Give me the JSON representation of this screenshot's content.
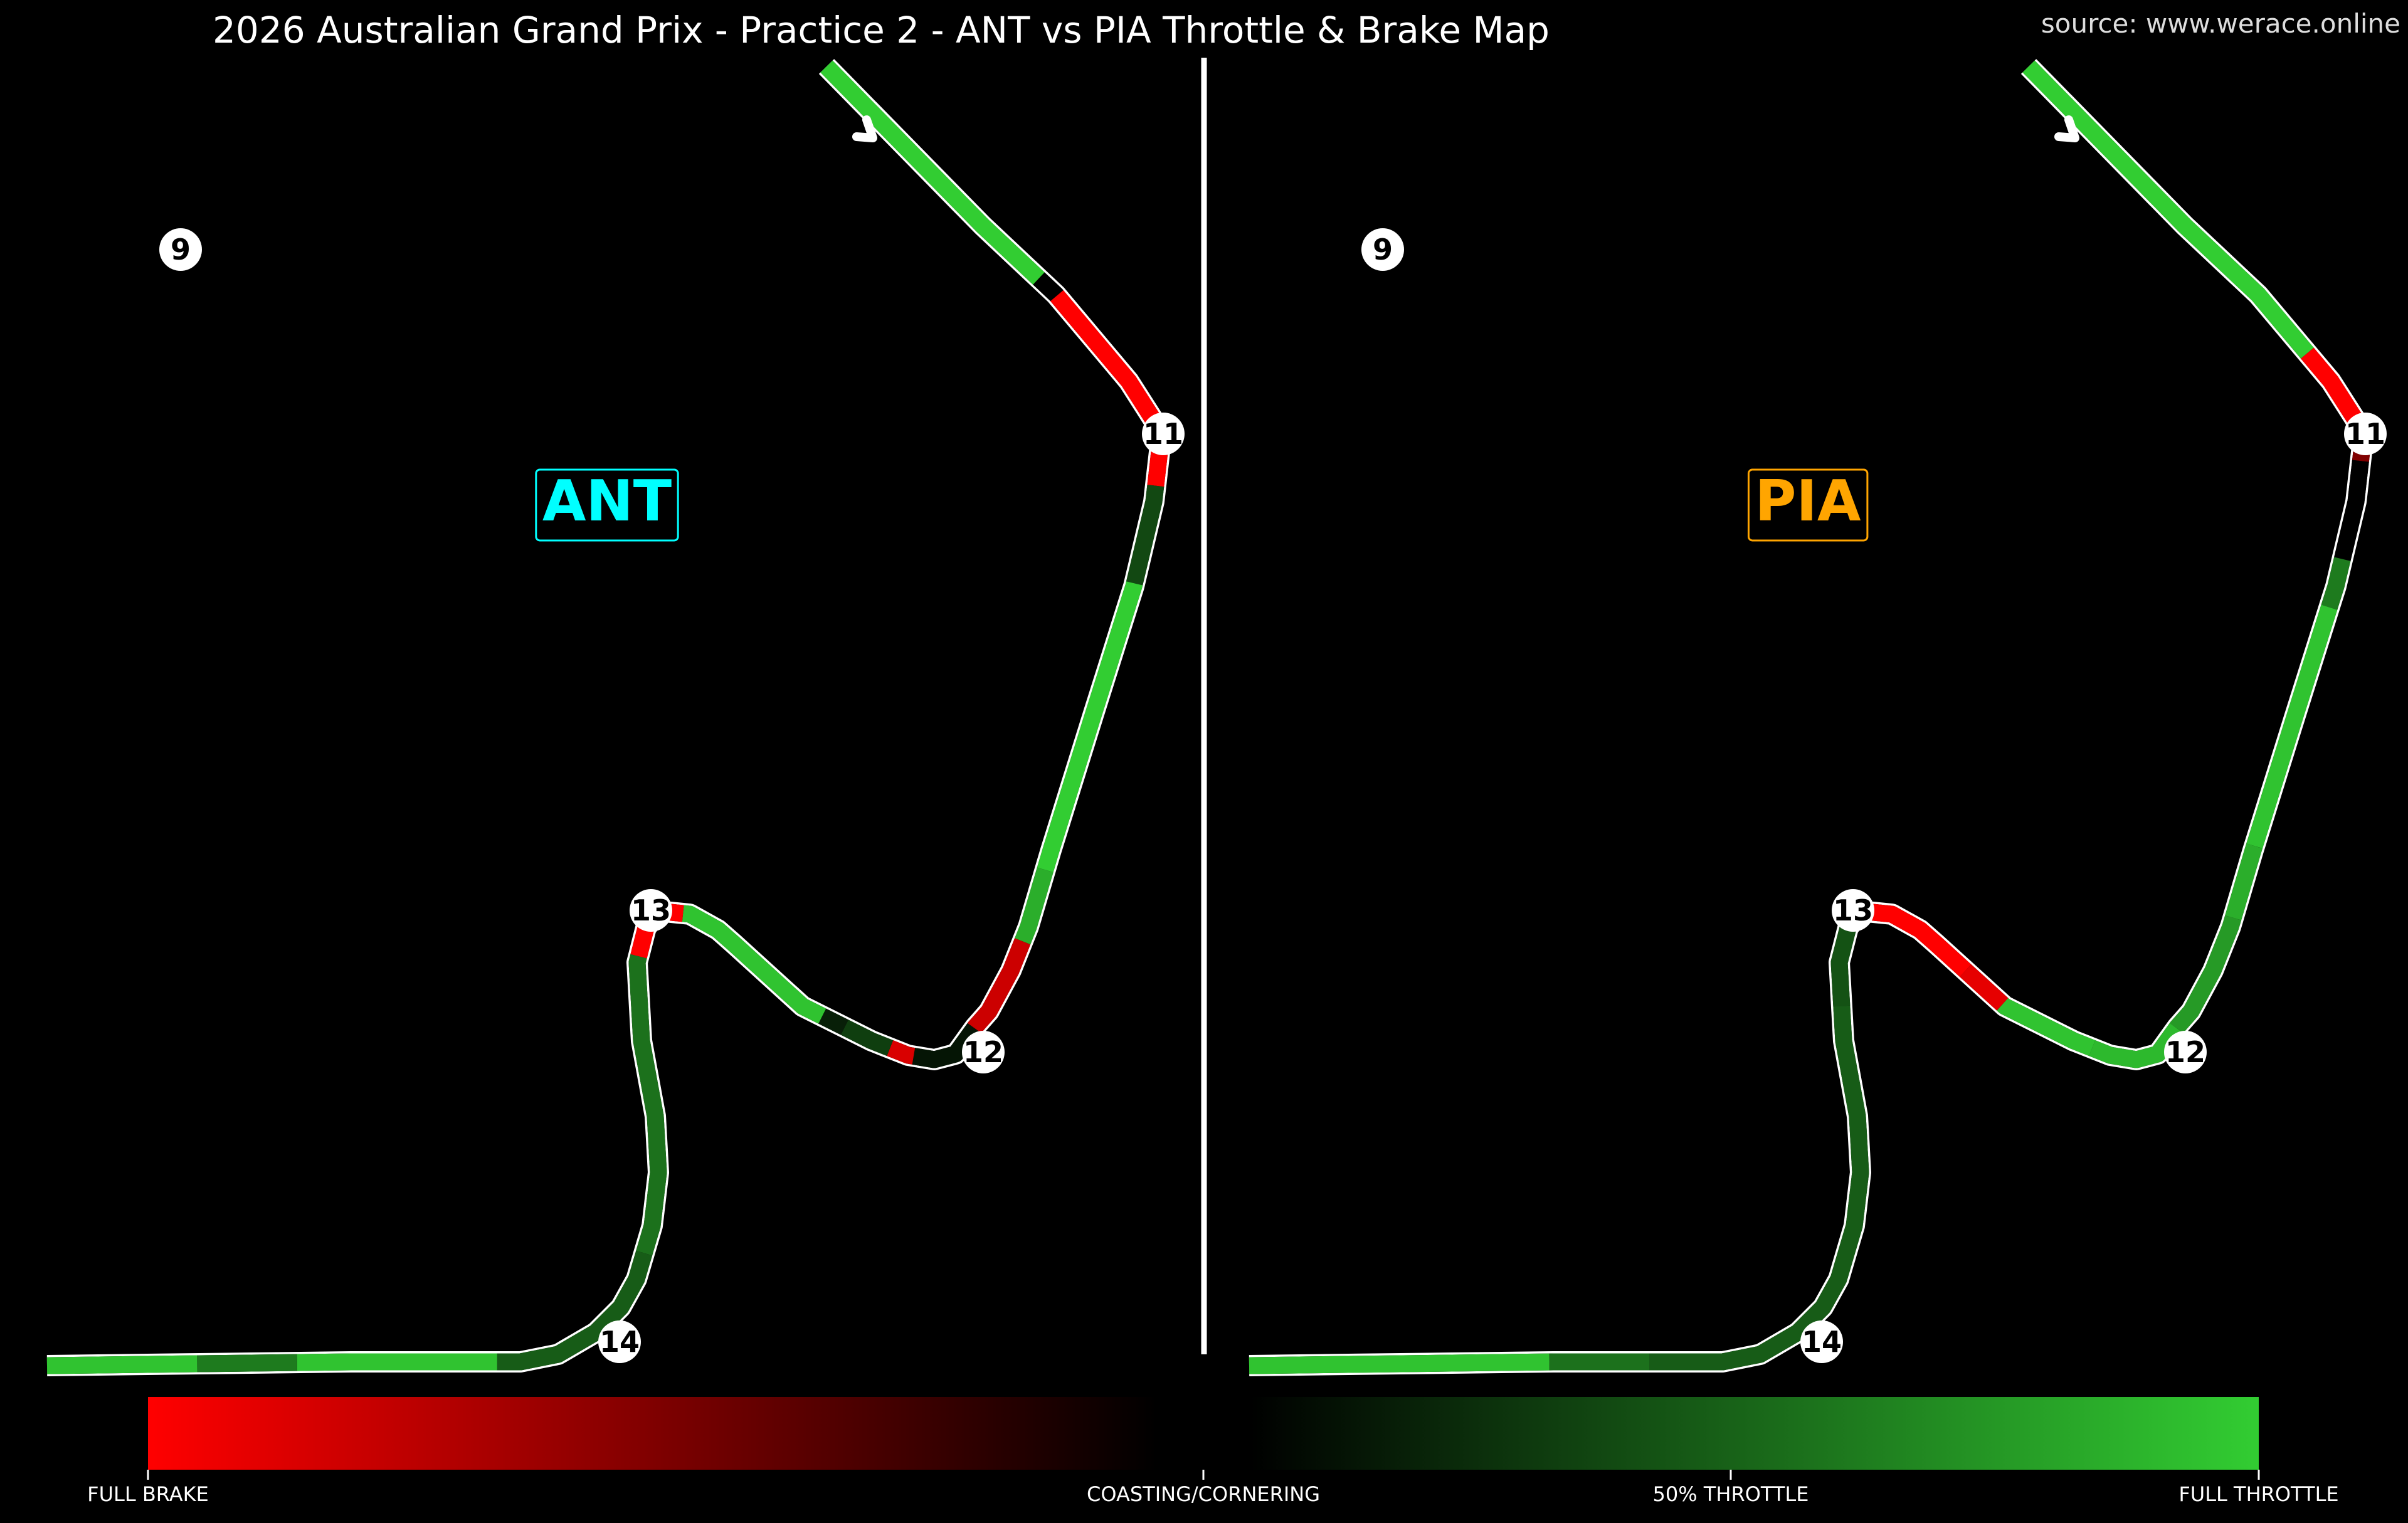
{
  "title": "2026 Australian Grand Prix - Practice 2 - ANT vs PIA Throttle & Brake Map",
  "source": "source: www.werace.online",
  "colors": {
    "full_brake": "#ff0000",
    "coasting": "#000000",
    "full_throttle": "#32cd32",
    "track_outline": "#ffffff",
    "divider": "#ffffff",
    "background": "#000000"
  },
  "chart_data": [
    {
      "type": "track_map",
      "driver": "ANT",
      "driver_color": "#00ffff",
      "corners": [
        "9",
        "11",
        "12",
        "13",
        "14"
      ],
      "segments": [
        {
          "from": 0.0,
          "to": 0.12,
          "value": 1.0
        },
        {
          "from": 0.12,
          "to": 0.13,
          "value": 0.0
        },
        {
          "from": 0.13,
          "to": 0.22,
          "value": -1.0
        },
        {
          "from": 0.22,
          "to": 0.26,
          "value": 0.35
        },
        {
          "from": 0.26,
          "to": 0.38,
          "value": 1.0
        },
        {
          "from": 0.38,
          "to": 0.41,
          "value": 0.85
        },
        {
          "from": 0.41,
          "to": 0.45,
          "value": -0.8
        },
        {
          "from": 0.45,
          "to": 0.48,
          "value": 0.1
        },
        {
          "from": 0.48,
          "to": 0.49,
          "value": -0.85
        },
        {
          "from": 0.49,
          "to": 0.51,
          "value": 0.3
        },
        {
          "from": 0.51,
          "to": 0.52,
          "value": 0.15
        },
        {
          "from": 0.52,
          "to": 0.59,
          "value": 0.95
        },
        {
          "from": 0.59,
          "to": 0.62,
          "value": -1.0
        },
        {
          "from": 0.62,
          "to": 0.74,
          "value": 0.55
        },
        {
          "from": 0.74,
          "to": 0.82,
          "value": 0.45
        },
        {
          "from": 0.82,
          "to": 0.9,
          "value": 0.95
        },
        {
          "from": 0.9,
          "to": 0.94,
          "value": 0.6
        },
        {
          "from": 0.94,
          "to": 1.0,
          "value": 0.95
        }
      ]
    },
    {
      "type": "track_map",
      "driver": "PIA",
      "driver_color": "#ffa500",
      "corners": [
        "9",
        "11",
        "12",
        "13",
        "14"
      ],
      "segments": [
        {
          "from": 0.0,
          "to": 0.16,
          "value": 1.0
        },
        {
          "from": 0.16,
          "to": 0.2,
          "value": -1.0
        },
        {
          "from": 0.2,
          "to": 0.21,
          "value": -0.5
        },
        {
          "from": 0.21,
          "to": 0.25,
          "value": 0.0
        },
        {
          "from": 0.25,
          "to": 0.27,
          "value": 0.6
        },
        {
          "from": 0.27,
          "to": 0.37,
          "value": 0.95
        },
        {
          "from": 0.37,
          "to": 0.4,
          "value": 0.85
        },
        {
          "from": 0.4,
          "to": 0.45,
          "value": 0.75
        },
        {
          "from": 0.45,
          "to": 0.49,
          "value": 0.9
        },
        {
          "from": 0.49,
          "to": 0.53,
          "value": 0.95
        },
        {
          "from": 0.53,
          "to": 0.55,
          "value": -0.9
        },
        {
          "from": 0.55,
          "to": 0.6,
          "value": -1.0
        },
        {
          "from": 0.6,
          "to": 0.64,
          "value": 0.4
        },
        {
          "from": 0.64,
          "to": 0.84,
          "value": 0.45
        },
        {
          "from": 0.84,
          "to": 0.88,
          "value": 0.55
        },
        {
          "from": 0.88,
          "to": 1.0,
          "value": 0.95
        }
      ]
    }
  ],
  "colorbar": {
    "ticks": [
      "FULL BRAKE",
      "COASTING/CORNERING",
      "50% THROTTLE",
      "FULL THROTTLE"
    ]
  }
}
